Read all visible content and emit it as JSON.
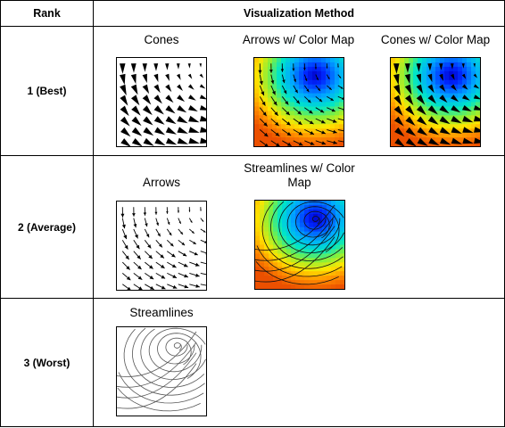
{
  "table": {
    "header_rank": "Rank",
    "header_method": "Visualization Method",
    "rows": [
      {
        "rank": "1 (Best)",
        "methods": [
          {
            "label": "Cones",
            "style": "cones-bw"
          },
          {
            "label": "Arrows w/ Color Map",
            "style": "arrows-color"
          },
          {
            "label": "Cones w/ Color Map",
            "style": "cones-color"
          }
        ]
      },
      {
        "rank": "2 (Average)",
        "methods": [
          {
            "label": "Arrows",
            "style": "arrows-bw"
          },
          {
            "label": "Streamlines w/ Color Map",
            "style": "streamlines-color"
          }
        ]
      },
      {
        "rank": "3 (Worst)",
        "methods": [
          {
            "label": "Streamlines",
            "style": "streamlines-bw"
          }
        ]
      }
    ]
  }
}
